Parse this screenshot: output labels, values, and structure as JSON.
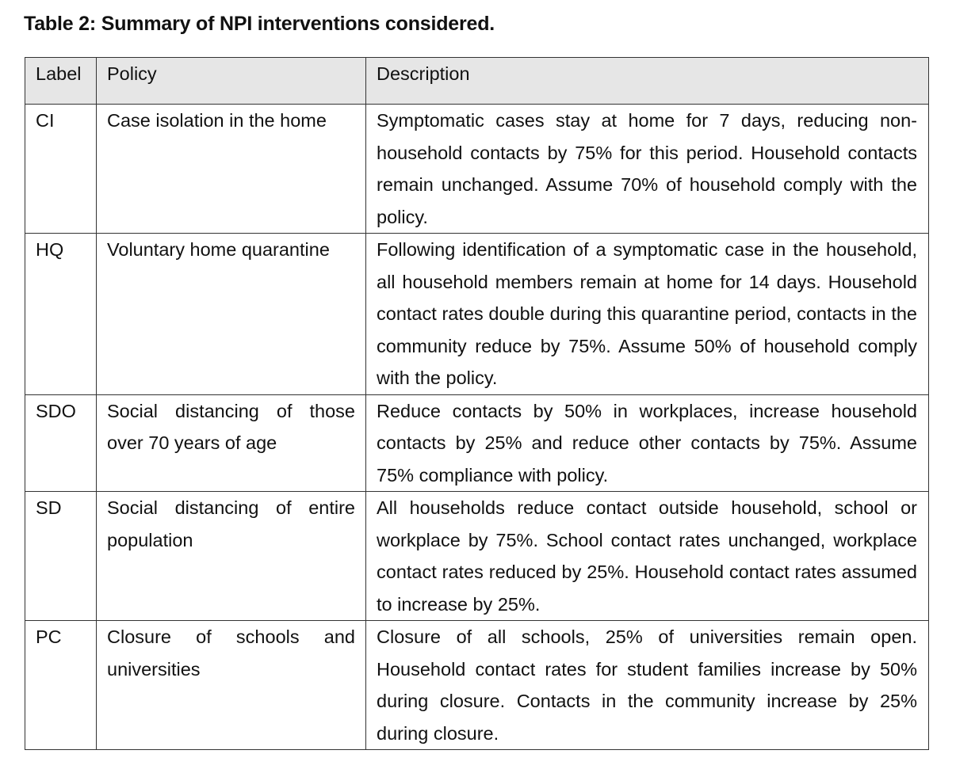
{
  "caption": "Table 2: Summary of NPI interventions considered.",
  "table": {
    "headers": {
      "label": "Label",
      "policy": "Policy",
      "description": "Description"
    },
    "rows": [
      {
        "label": "CI",
        "policy": "Case isolation in the home",
        "description": "Symptomatic cases stay at home for 7 days, reducing non-household contacts by 75% for this period. Household contacts remain unchanged. Assume 70% of household comply with the policy."
      },
      {
        "label": "HQ",
        "policy": "Voluntary home quarantine",
        "description": "Following identification of a symptomatic case in the household, all household members remain at home for 14 days. Household contact rates double during this quarantine period, contacts in the community reduce by 75%. Assume 50% of household comply with the policy."
      },
      {
        "label": "SDO",
        "policy": "Social distancing of those over 70 years of age",
        "description": "Reduce contacts by 50% in workplaces, increase household contacts by 25% and reduce other contacts by 75%. Assume 75% compliance with policy."
      },
      {
        "label": "SD",
        "policy": "Social distancing of entire population",
        "description": "All households reduce contact outside household, school or workplace by 75%. School contact rates unchanged, workplace contact rates reduced by 25%. Household contact rates assumed to increase by 25%."
      },
      {
        "label": "PC",
        "policy": "Closure of schools and universities",
        "description": "Closure of all schools, 25% of universities remain open. Household contact rates for student families increase by 50% during closure. Contacts in the community increase by 25% during closure."
      }
    ]
  }
}
